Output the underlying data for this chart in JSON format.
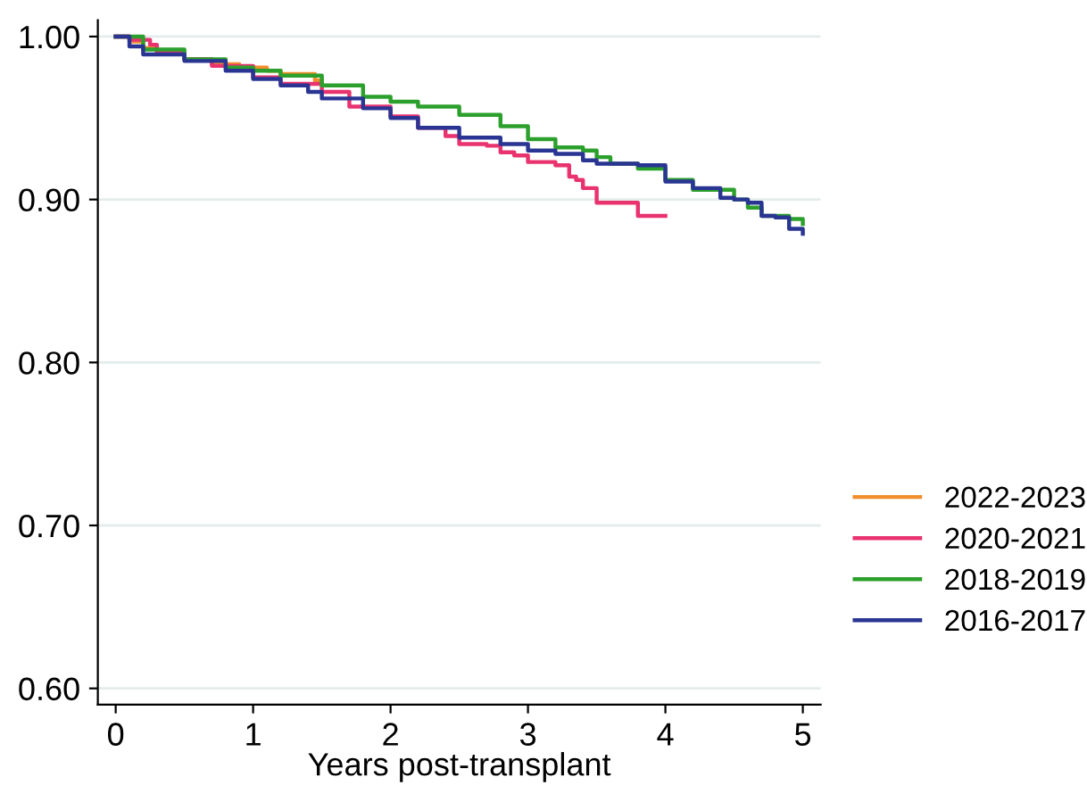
{
  "chart_data": {
    "type": "step",
    "xlabel": "Years post-transplant",
    "xlim": [
      -0.13,
      5.13
    ],
    "xticks": [
      0,
      1,
      2,
      3,
      4,
      5
    ],
    "ylim": [
      0.59,
      1.01
    ],
    "yticks": [
      {
        "value": 0.6,
        "label": "0.60"
      },
      {
        "value": 0.7,
        "label": "0.70"
      },
      {
        "value": 0.8,
        "label": "0.80"
      },
      {
        "value": 0.9,
        "label": "0.90"
      },
      {
        "value": 1.0,
        "label": "1.00"
      }
    ],
    "grid": "y",
    "legend": "bottom right",
    "line_style": "solid",
    "marker": "none",
    "series": [
      {
        "name": "2022-2023",
        "color": "#f28e2b",
        "x": [
          0,
          0.1,
          0.2,
          0.3,
          0.5,
          0.7,
          0.9,
          1.0,
          1.1,
          1.2,
          1.4,
          1.45,
          1.5
        ],
        "values": [
          1.0,
          0.997,
          0.993,
          0.99,
          0.986,
          0.983,
          0.981,
          0.981,
          0.979,
          0.977,
          0.977,
          0.973,
          0.971
        ]
      },
      {
        "name": "2020-2021",
        "color": "#e8336f",
        "x": [
          0,
          0.1,
          0.25,
          0.3,
          0.5,
          0.7,
          1.0,
          1.2,
          1.5,
          1.7,
          2.0,
          2.2,
          2.4,
          2.5,
          2.7,
          2.8,
          2.9,
          3.0,
          3.2,
          3.3,
          3.35,
          3.4,
          3.5,
          3.8,
          4.0
        ],
        "values": [
          1.0,
          0.998,
          0.995,
          0.99,
          0.986,
          0.982,
          0.975,
          0.971,
          0.966,
          0.957,
          0.951,
          0.944,
          0.939,
          0.934,
          0.933,
          0.929,
          0.927,
          0.923,
          0.921,
          0.914,
          0.912,
          0.907,
          0.898,
          0.89,
          0.89
        ]
      },
      {
        "name": "2018-2019",
        "color": "#2ca02c",
        "x": [
          0,
          0.2,
          0.5,
          0.8,
          1.0,
          1.2,
          1.5,
          1.8,
          2.0,
          2.2,
          2.5,
          2.8,
          3.0,
          3.2,
          3.4,
          3.5,
          3.6,
          3.8,
          4.0,
          4.2,
          4.5,
          4.6,
          4.7,
          4.9,
          5.0
        ],
        "values": [
          1.0,
          0.992,
          0.986,
          0.981,
          0.979,
          0.976,
          0.97,
          0.963,
          0.96,
          0.957,
          0.952,
          0.945,
          0.937,
          0.932,
          0.93,
          0.926,
          0.922,
          0.919,
          0.912,
          0.906,
          0.9,
          0.895,
          0.89,
          0.888,
          0.885
        ]
      },
      {
        "name": "2016-2017",
        "color": "#2a3593",
        "x": [
          0,
          0.1,
          0.2,
          0.5,
          0.8,
          1.0,
          1.2,
          1.4,
          1.5,
          1.8,
          2.0,
          2.2,
          2.5,
          2.8,
          3.0,
          3.2,
          3.4,
          3.5,
          3.8,
          4.0,
          4.2,
          4.4,
          4.5,
          4.6,
          4.7,
          4.8,
          4.9,
          5.0
        ],
        "values": [
          1.0,
          0.994,
          0.989,
          0.985,
          0.979,
          0.974,
          0.97,
          0.966,
          0.962,
          0.956,
          0.95,
          0.944,
          0.938,
          0.934,
          0.93,
          0.928,
          0.924,
          0.922,
          0.921,
          0.911,
          0.907,
          0.901,
          0.9,
          0.898,
          0.89,
          0.889,
          0.882,
          0.879
        ]
      }
    ]
  }
}
